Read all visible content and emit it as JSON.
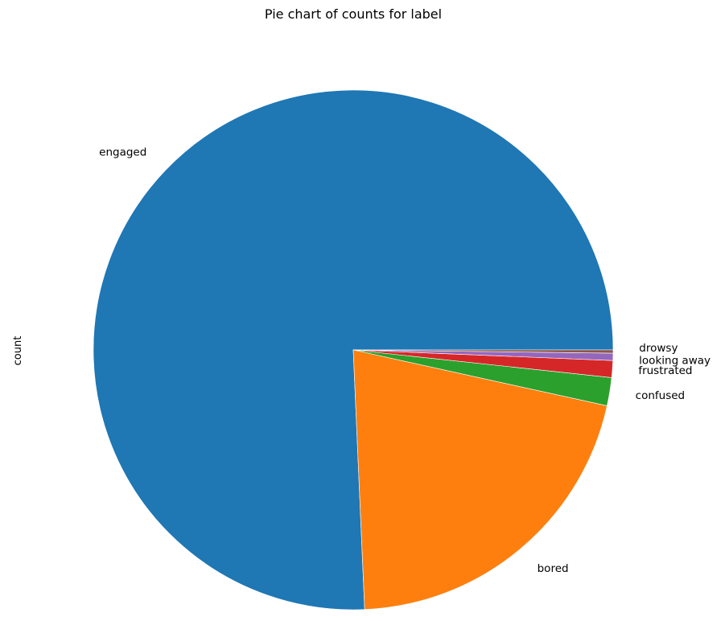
{
  "chart_data": {
    "type": "pie",
    "title": "Pie chart of counts for label",
    "ylabel": "count",
    "categories": [
      "engaged",
      "bored",
      "confused",
      "frustrated",
      "looking away",
      "drowsy"
    ],
    "values": [
      75.7,
      20.85,
      1.75,
      1.05,
      0.45,
      0.2
    ],
    "colors": [
      "#1f77b4",
      "#ff7f0e",
      "#2ca02c",
      "#d62728",
      "#9467bd",
      "#8c564b"
    ],
    "start_angle_deg": 0,
    "direction": "counterclockwise"
  }
}
